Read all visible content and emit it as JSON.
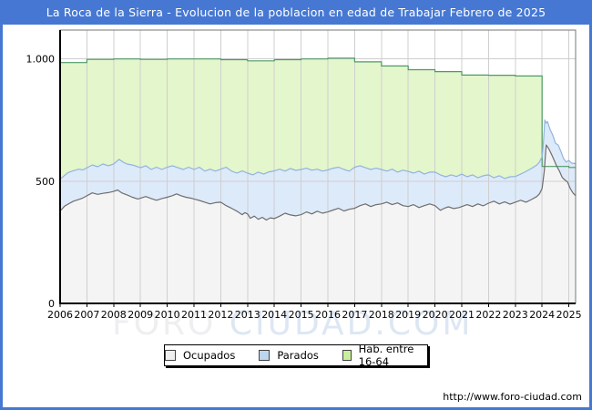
{
  "header": {
    "title": "La Roca de la Sierra - Evolucion de la poblacion en edad de Trabajar Febrero de 2025"
  },
  "footer": {
    "url": "http://www.foro-ciudad.com"
  },
  "watermark": {
    "left": "FORO",
    "right": "CIUDAD.COM"
  },
  "colors": {
    "accent": "#4678d3",
    "grid": "#cfcfcf",
    "frame": "#777777",
    "axis": "#000000",
    "hab_fill": "#e4f6cb",
    "hab_stroke": "#4e9a66",
    "parados_fill": "#ddeafa",
    "parados_stroke": "#90b4de",
    "ocupados_fill": "#f4f4f4",
    "ocupados_stroke": "#6e6e6e"
  },
  "legend": {
    "items": [
      {
        "label": "Ocupados",
        "color": "#efefef"
      },
      {
        "label": "Parados",
        "color": "#bcd6f0"
      },
      {
        "label": "Hab. entre 16-64",
        "color": "#c9ef9c"
      }
    ]
  },
  "chart_data": {
    "type": "area",
    "title": "La Roca de la Sierra - Evolucion de la poblacion en edad de Trabajar Febrero de 2025",
    "xlabel": "",
    "ylabel": "",
    "xlim": [
      2006,
      2025.25
    ],
    "ylim": [
      0,
      1118
    ],
    "grid": true,
    "legend_position": "bottom",
    "x_ticks": [
      2006,
      2007,
      2008,
      2009,
      2010,
      2011,
      2012,
      2013,
      2014,
      2015,
      2016,
      2017,
      2018,
      2019,
      2020,
      2021,
      2022,
      2023,
      2024,
      2025
    ],
    "y_ticks": [
      {
        "v": 0,
        "label": "0"
      },
      {
        "v": 500,
        "label": "500"
      },
      {
        "v": 1000,
        "label": "1.000"
      }
    ],
    "stacking_note": "Parados area is stacked on top of Ocupados: its boundary values are Ocupados+Parados. Hab. entre 16-64 is the annual padron step series drawn behind both.",
    "series": [
      {
        "name": "Hab. entre 16-64",
        "step": true,
        "fill": "#e4f6cb",
        "stroke": "#4e9a66",
        "points": [
          [
            2006,
            985
          ],
          [
            2007,
            998
          ],
          [
            2008,
            1000
          ],
          [
            2009,
            998
          ],
          [
            2010,
            1000
          ],
          [
            2011,
            1000
          ],
          [
            2012,
            997
          ],
          [
            2013,
            992
          ],
          [
            2014,
            997
          ],
          [
            2015,
            1000
          ],
          [
            2016,
            1003
          ],
          [
            2017,
            988
          ],
          [
            2018,
            971
          ],
          [
            2019,
            956
          ],
          [
            2020,
            948
          ],
          [
            2021,
            934
          ],
          [
            2022,
            933
          ],
          [
            2023,
            930
          ],
          [
            2024,
            560
          ],
          [
            2025,
            556
          ]
        ]
      },
      {
        "name": "Ocupados+Parados (tope banda Parados)",
        "step": false,
        "fill": "#ddeafa",
        "stroke": "#90b4de",
        "points": [
          [
            2006.0,
            508
          ],
          [
            2006.15,
            522
          ],
          [
            2006.3,
            535
          ],
          [
            2006.5,
            543
          ],
          [
            2006.7,
            549
          ],
          [
            2006.85,
            546
          ],
          [
            2007.0,
            555
          ],
          [
            2007.2,
            566
          ],
          [
            2007.4,
            559
          ],
          [
            2007.6,
            570
          ],
          [
            2007.8,
            563
          ],
          [
            2008.0,
            570
          ],
          [
            2008.2,
            589
          ],
          [
            2008.35,
            578
          ],
          [
            2008.5,
            570
          ],
          [
            2008.7,
            566
          ],
          [
            2008.9,
            559
          ],
          [
            2009.0,
            555
          ],
          [
            2009.2,
            563
          ],
          [
            2009.4,
            548
          ],
          [
            2009.6,
            557
          ],
          [
            2009.8,
            548
          ],
          [
            2010.0,
            557
          ],
          [
            2010.2,
            563
          ],
          [
            2010.4,
            555
          ],
          [
            2010.6,
            548
          ],
          [
            2010.8,
            557
          ],
          [
            2011.0,
            548
          ],
          [
            2011.2,
            557
          ],
          [
            2011.4,
            541
          ],
          [
            2011.6,
            549
          ],
          [
            2011.8,
            541
          ],
          [
            2012.0,
            549
          ],
          [
            2012.2,
            557
          ],
          [
            2012.4,
            541
          ],
          [
            2012.6,
            533
          ],
          [
            2012.8,
            542
          ],
          [
            2013.0,
            533
          ],
          [
            2013.2,
            526
          ],
          [
            2013.4,
            537
          ],
          [
            2013.6,
            529
          ],
          [
            2013.8,
            538
          ],
          [
            2014.0,
            542
          ],
          [
            2014.2,
            549
          ],
          [
            2014.4,
            541
          ],
          [
            2014.6,
            552
          ],
          [
            2014.8,
            544
          ],
          [
            2015.0,
            548
          ],
          [
            2015.2,
            553
          ],
          [
            2015.4,
            545
          ],
          [
            2015.6,
            549
          ],
          [
            2015.8,
            541
          ],
          [
            2016.0,
            546
          ],
          [
            2016.2,
            553
          ],
          [
            2016.4,
            557
          ],
          [
            2016.6,
            548
          ],
          [
            2016.8,
            541
          ],
          [
            2017.0,
            557
          ],
          [
            2017.2,
            563
          ],
          [
            2017.4,
            555
          ],
          [
            2017.6,
            548
          ],
          [
            2017.8,
            553
          ],
          [
            2018.0,
            548
          ],
          [
            2018.2,
            541
          ],
          [
            2018.4,
            549
          ],
          [
            2018.6,
            537
          ],
          [
            2018.8,
            545
          ],
          [
            2019.0,
            540
          ],
          [
            2019.2,
            533
          ],
          [
            2019.4,
            541
          ],
          [
            2019.6,
            529
          ],
          [
            2019.8,
            537
          ],
          [
            2020.0,
            537
          ],
          [
            2020.2,
            526
          ],
          [
            2020.4,
            518
          ],
          [
            2020.6,
            526
          ],
          [
            2020.8,
            519
          ],
          [
            2021.0,
            529
          ],
          [
            2021.2,
            518
          ],
          [
            2021.4,
            526
          ],
          [
            2021.6,
            514
          ],
          [
            2021.8,
            522
          ],
          [
            2022.0,
            526
          ],
          [
            2022.2,
            514
          ],
          [
            2022.4,
            522
          ],
          [
            2022.6,
            511
          ],
          [
            2022.8,
            518
          ],
          [
            2023.0,
            519
          ],
          [
            2023.2,
            529
          ],
          [
            2023.4,
            540
          ],
          [
            2023.6,
            552
          ],
          [
            2023.8,
            566
          ],
          [
            2023.9,
            578
          ],
          [
            2024.0,
            600
          ],
          [
            2024.05,
            660
          ],
          [
            2024.1,
            750
          ],
          [
            2024.15,
            737
          ],
          [
            2024.2,
            744
          ],
          [
            2024.3,
            710
          ],
          [
            2024.4,
            688
          ],
          [
            2024.5,
            655
          ],
          [
            2024.6,
            648
          ],
          [
            2024.7,
            622
          ],
          [
            2024.8,
            592
          ],
          [
            2024.9,
            578
          ],
          [
            2025.0,
            585
          ],
          [
            2025.1,
            574
          ],
          [
            2025.25,
            572
          ]
        ]
      },
      {
        "name": "Ocupados",
        "step": false,
        "fill": "#f4f4f4",
        "stroke": "#6e6e6e",
        "points": [
          [
            2006.0,
            378
          ],
          [
            2006.17,
            398
          ],
          [
            2006.33,
            408
          ],
          [
            2006.5,
            418
          ],
          [
            2006.67,
            424
          ],
          [
            2006.83,
            430
          ],
          [
            2007.0,
            440
          ],
          [
            2007.2,
            452
          ],
          [
            2007.4,
            446
          ],
          [
            2007.6,
            450
          ],
          [
            2007.8,
            453
          ],
          [
            2008.0,
            458
          ],
          [
            2008.15,
            464
          ],
          [
            2008.3,
            452
          ],
          [
            2008.5,
            444
          ],
          [
            2008.7,
            434
          ],
          [
            2008.9,
            427
          ],
          [
            2009.0,
            430
          ],
          [
            2009.2,
            437
          ],
          [
            2009.4,
            429
          ],
          [
            2009.6,
            422
          ],
          [
            2009.8,
            429
          ],
          [
            2010.0,
            434
          ],
          [
            2010.2,
            441
          ],
          [
            2010.35,
            448
          ],
          [
            2010.5,
            441
          ],
          [
            2010.7,
            434
          ],
          [
            2010.9,
            430
          ],
          [
            2011.0,
            427
          ],
          [
            2011.2,
            421
          ],
          [
            2011.4,
            414
          ],
          [
            2011.6,
            407
          ],
          [
            2011.8,
            412
          ],
          [
            2012.0,
            414
          ],
          [
            2012.2,
            400
          ],
          [
            2012.4,
            389
          ],
          [
            2012.6,
            377
          ],
          [
            2012.8,
            363
          ],
          [
            2012.9,
            371
          ],
          [
            2013.0,
            366
          ],
          [
            2013.1,
            348
          ],
          [
            2013.25,
            357
          ],
          [
            2013.4,
            344
          ],
          [
            2013.55,
            352
          ],
          [
            2013.7,
            341
          ],
          [
            2013.85,
            350
          ],
          [
            2014.0,
            347
          ],
          [
            2014.2,
            357
          ],
          [
            2014.4,
            369
          ],
          [
            2014.6,
            362
          ],
          [
            2014.8,
            358
          ],
          [
            2015.0,
            363
          ],
          [
            2015.2,
            374
          ],
          [
            2015.4,
            366
          ],
          [
            2015.6,
            377
          ],
          [
            2015.8,
            369
          ],
          [
            2016.0,
            374
          ],
          [
            2016.2,
            382
          ],
          [
            2016.4,
            389
          ],
          [
            2016.6,
            378
          ],
          [
            2016.8,
            385
          ],
          [
            2017.0,
            389
          ],
          [
            2017.2,
            400
          ],
          [
            2017.4,
            407
          ],
          [
            2017.6,
            396
          ],
          [
            2017.8,
            404
          ],
          [
            2018.0,
            407
          ],
          [
            2018.2,
            414
          ],
          [
            2018.4,
            404
          ],
          [
            2018.6,
            411
          ],
          [
            2018.8,
            400
          ],
          [
            2019.0,
            396
          ],
          [
            2019.2,
            404
          ],
          [
            2019.4,
            392
          ],
          [
            2019.6,
            400
          ],
          [
            2019.8,
            407
          ],
          [
            2020.0,
            400
          ],
          [
            2020.2,
            381
          ],
          [
            2020.35,
            389
          ],
          [
            2020.5,
            395
          ],
          [
            2020.7,
            388
          ],
          [
            2020.9,
            392
          ],
          [
            2021.0,
            396
          ],
          [
            2021.2,
            404
          ],
          [
            2021.4,
            396
          ],
          [
            2021.6,
            407
          ],
          [
            2021.8,
            399
          ],
          [
            2022.0,
            410
          ],
          [
            2022.2,
            418
          ],
          [
            2022.4,
            407
          ],
          [
            2022.6,
            415
          ],
          [
            2022.8,
            406
          ],
          [
            2023.0,
            414
          ],
          [
            2023.2,
            422
          ],
          [
            2023.4,
            414
          ],
          [
            2023.6,
            425
          ],
          [
            2023.8,
            437
          ],
          [
            2023.9,
            448
          ],
          [
            2024.0,
            470
          ],
          [
            2024.08,
            540
          ],
          [
            2024.15,
            648
          ],
          [
            2024.25,
            632
          ],
          [
            2024.35,
            610
          ],
          [
            2024.45,
            585
          ],
          [
            2024.55,
            560
          ],
          [
            2024.65,
            540
          ],
          [
            2024.75,
            515
          ],
          [
            2024.85,
            505
          ],
          [
            2024.95,
            496
          ],
          [
            2025.05,
            470
          ],
          [
            2025.15,
            452
          ],
          [
            2025.25,
            440
          ]
        ]
      }
    ]
  }
}
